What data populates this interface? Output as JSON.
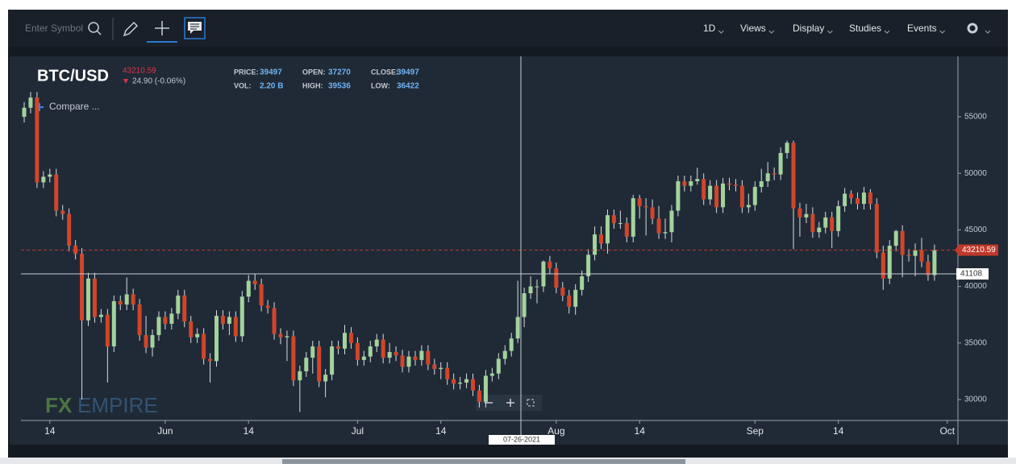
{
  "toolbar": {
    "search_placeholder": "Enter Symbol",
    "menus": [
      "1D",
      "Views",
      "Display",
      "Studies",
      "Events"
    ]
  },
  "chart_data": {
    "type": "candlestick",
    "title": "BTC/USD",
    "last_price": 43210.59,
    "change": "24.90 (-0.06%)",
    "compare": "Compare ...",
    "info": [
      {
        "label": "PRICE:",
        "value": 39497
      },
      {
        "label": "VOL:",
        "value": "2.20 B"
      },
      {
        "label": "OPEN:",
        "value": 37270
      },
      {
        "label": "HIGH:",
        "value": 39536
      },
      {
        "label": "CLOSE:",
        "value": 39497
      },
      {
        "label": "LOW:",
        "value": 36422
      }
    ],
    "crosshair": {
      "value": 41108,
      "date": "07-26-2021"
    },
    "up_color": "#a3d39c",
    "down_color": "#d2452b",
    "ylim": [
      28150,
      60340
    ],
    "yticks": [
      30000,
      35000,
      40000,
      45000,
      50000,
      55000
    ],
    "xticks": [
      {
        "value": "2021-05-14",
        "label": "14"
      },
      {
        "value": "2021-06-01",
        "label": "Jun"
      },
      {
        "value": "2021-06-14",
        "label": "14"
      },
      {
        "value": "2021-07-01",
        "label": "Jul"
      },
      {
        "value": "2021-07-14",
        "label": "14"
      },
      {
        "value": "2021-08-01",
        "label": "Aug"
      },
      {
        "value": "2021-08-14",
        "label": "14"
      },
      {
        "value": "2021-09-01",
        "label": "Sep"
      },
      {
        "value": "2021-09-14",
        "label": "14"
      },
      {
        "value": "2021-10-01",
        "label": "Oct"
      }
    ],
    "x": [
      "2021-05-10",
      "2021-05-11",
      "2021-05-12",
      "2021-05-13",
      "2021-05-14",
      "2021-05-15",
      "2021-05-16",
      "2021-05-17",
      "2021-05-18",
      "2021-05-19",
      "2021-05-20",
      "2021-05-21",
      "2021-05-22",
      "2021-05-23",
      "2021-05-24",
      "2021-05-25",
      "2021-05-26",
      "2021-05-27",
      "2021-05-28",
      "2021-05-29",
      "2021-05-30",
      "2021-05-31",
      "2021-06-01",
      "2021-06-02",
      "2021-06-03",
      "2021-06-04",
      "2021-06-05",
      "2021-06-06",
      "2021-06-07",
      "2021-06-08",
      "2021-06-09",
      "2021-06-10",
      "2021-06-11",
      "2021-06-12",
      "2021-06-13",
      "2021-06-14",
      "2021-06-15",
      "2021-06-16",
      "2021-06-17",
      "2021-06-18",
      "2021-06-19",
      "2021-06-20",
      "2021-06-21",
      "2021-06-22",
      "2021-06-23",
      "2021-06-24",
      "2021-06-25",
      "2021-06-26",
      "2021-06-27",
      "2021-06-28",
      "2021-06-29",
      "2021-06-30",
      "2021-07-01",
      "2021-07-02",
      "2021-07-03",
      "2021-07-04",
      "2021-07-05",
      "2021-07-06",
      "2021-07-07",
      "2021-07-08",
      "2021-07-09",
      "2021-07-10",
      "2021-07-11",
      "2021-07-12",
      "2021-07-13",
      "2021-07-14",
      "2021-07-15",
      "2021-07-16",
      "2021-07-17",
      "2021-07-18",
      "2021-07-19",
      "2021-07-20",
      "2021-07-21",
      "2021-07-22",
      "2021-07-23",
      "2021-07-24",
      "2021-07-25",
      "2021-07-26",
      "2021-07-27",
      "2021-07-28",
      "2021-07-29",
      "2021-07-30",
      "2021-07-31",
      "2021-08-01",
      "2021-08-02",
      "2021-08-03",
      "2021-08-04",
      "2021-08-05",
      "2021-08-06",
      "2021-08-07",
      "2021-08-08",
      "2021-08-09",
      "2021-08-10",
      "2021-08-11",
      "2021-08-12",
      "2021-08-13",
      "2021-08-14",
      "2021-08-15",
      "2021-08-16",
      "2021-08-17",
      "2021-08-18",
      "2021-08-19",
      "2021-08-20",
      "2021-08-21",
      "2021-08-22",
      "2021-08-23",
      "2021-08-24",
      "2021-08-25",
      "2021-08-26",
      "2021-08-27",
      "2021-08-28",
      "2021-08-29",
      "2021-08-30",
      "2021-08-31",
      "2021-09-01",
      "2021-09-02",
      "2021-09-03",
      "2021-09-04",
      "2021-09-05",
      "2021-09-06",
      "2021-09-07",
      "2021-09-08",
      "2021-09-09",
      "2021-09-10",
      "2021-09-11",
      "2021-09-12",
      "2021-09-13",
      "2021-09-14",
      "2021-09-15",
      "2021-09-16",
      "2021-09-17",
      "2021-09-18",
      "2021-09-19",
      "2021-09-20",
      "2021-09-21",
      "2021-09-22",
      "2021-09-23",
      "2021-09-24",
      "2021-09-25",
      "2021-09-26",
      "2021-09-27",
      "2021-09-28",
      "2021-09-29"
    ],
    "open": [
      55000,
      55800,
      56700,
      49200,
      49700,
      49900,
      46700,
      46400,
      43600,
      42900,
      37000,
      40700,
      37300,
      37500,
      34700,
      38700,
      38400,
      39300,
      38400,
      35700,
      34600,
      35700,
      37300,
      36700,
      37600,
      39200,
      36900,
      35500,
      35800,
      33600,
      33400,
      37400,
      36700,
      37300,
      35600,
      39100,
      40500,
      40200,
      38300,
      38100,
      35800,
      35500,
      35600,
      31700,
      32500,
      33700,
      34700,
      31600,
      32200,
      34700,
      34500,
      35900,
      35000,
      33500,
      33800,
      34700,
      35300,
      33700,
      34200,
      33900,
      32900,
      33800,
      33500,
      34300,
      33100,
      32700,
      32800,
      31800,
      31400,
      31500,
      31800,
      30800,
      29800,
      32100,
      32300,
      33600,
      34300,
      35400,
      37300,
      39400,
      40000,
      40000,
      42200,
      41600,
      39900,
      39200,
      38200,
      39700,
      40900,
      42800,
      44600,
      43800,
      46300,
      45600,
      45600,
      44400,
      47800,
      47100,
      47000,
      46000,
      44700,
      44800,
      46700,
      49300,
      48900,
      49300,
      49500,
      47700,
      48900,
      47000,
      49100,
      49000,
      48900,
      47000,
      47200,
      48800,
      49300,
      50000,
      49900,
      51800,
      52700,
      46900,
      46100,
      46400,
      44800,
      45200,
      46100,
      44900,
      47100,
      48200,
      47800,
      47300,
      48300,
      47300,
      43000,
      40700,
      43600,
      44900,
      42800,
      42700,
      43200,
      42200,
      41000
    ],
    "high": [
      56300,
      57200,
      57200,
      50200,
      50400,
      50400,
      47200,
      46900,
      44100,
      43400,
      41200,
      41200,
      38000,
      38000,
      39200,
      39200,
      40800,
      39800,
      38900,
      37400,
      36200,
      37800,
      37800,
      38100,
      39700,
      39700,
      37400,
      36300,
      36300,
      34100,
      37900,
      37900,
      37800,
      37800,
      39600,
      41000,
      41100,
      40700,
      38800,
      38600,
      36300,
      36100,
      36100,
      33000,
      34200,
      35200,
      35200,
      32700,
      35200,
      35200,
      36600,
      36400,
      35500,
      34300,
      35200,
      35800,
      35800,
      35000,
      34700,
      34400,
      34300,
      34300,
      34800,
      34800,
      33600,
      33300,
      33300,
      32300,
      32000,
      32300,
      32300,
      31300,
      32600,
      32800,
      34100,
      34800,
      35900,
      40500,
      39900,
      40900,
      40600,
      42300,
      42700,
      42100,
      40400,
      39700,
      40200,
      41400,
      43300,
      45300,
      45300,
      46800,
      46800,
      46700,
      46100,
      48100,
      48100,
      47800,
      47700,
      47100,
      46000,
      47200,
      49800,
      49800,
      49800,
      50500,
      50000,
      49400,
      49400,
      49600,
      49600,
      49500,
      49400,
      48200,
      49300,
      50400,
      51000,
      50500,
      52300,
      52900,
      52900,
      47400,
      47300,
      47000,
      45700,
      46600,
      46600,
      47600,
      48700,
      48500,
      48300,
      48800,
      48600,
      47800,
      43600,
      44100,
      45000,
      45400,
      43300,
      43800,
      44300,
      42800,
      43700
    ],
    "low": [
      54500,
      55300,
      48700,
      48700,
      49200,
      46200,
      45900,
      43100,
      42400,
      30000,
      36500,
      36800,
      36800,
      31500,
      34200,
      37900,
      37900,
      37900,
      35200,
      34100,
      33800,
      35200,
      36200,
      36200,
      37100,
      36400,
      35000,
      35000,
      33100,
      31500,
      32900,
      36200,
      35700,
      35100,
      35100,
      38600,
      39700,
      37800,
      37600,
      35300,
      34900,
      33400,
      31200,
      28900,
      32000,
      32300,
      31100,
      30200,
      31700,
      34000,
      34000,
      34500,
      33000,
      33000,
      33300,
      34200,
      33200,
      33200,
      33400,
      32400,
      32400,
      33000,
      33000,
      32600,
      32200,
      31800,
      31300,
      30900,
      30900,
      31000,
      30300,
      29300,
      29300,
      31600,
      31800,
      33100,
      33800,
      35000,
      36400,
      38900,
      38500,
      39500,
      41100,
      39400,
      38700,
      37600,
      37500,
      39200,
      40400,
      42300,
      43300,
      42900,
      45100,
      45100,
      43900,
      43900,
      46000,
      44500,
      45500,
      44200,
      44200,
      43900,
      46200,
      48400,
      48400,
      49000,
      47200,
      47200,
      46500,
      46500,
      48500,
      48400,
      46500,
      46500,
      46700,
      48300,
      48800,
      49400,
      49400,
      51300,
      43300,
      44400,
      45600,
      44300,
      44300,
      44700,
      43400,
      44400,
      46600,
      47300,
      46800,
      46800,
      46800,
      42500,
      39700,
      40200,
      43100,
      40800,
      42200,
      40900,
      41700,
      40500,
      40500
    ],
    "close": [
      55800,
      56700,
      49200,
      49700,
      49900,
      46700,
      46400,
      43600,
      42900,
      37000,
      40700,
      37300,
      37500,
      34700,
      38700,
      38400,
      39300,
      38400,
      35700,
      34600,
      35700,
      37300,
      36700,
      37600,
      39200,
      36900,
      35500,
      35800,
      33600,
      33400,
      37400,
      36700,
      37300,
      35600,
      39100,
      40500,
      40200,
      38300,
      38100,
      35800,
      35500,
      35600,
      31700,
      32500,
      33700,
      34700,
      31600,
      32200,
      34700,
      34500,
      35900,
      35000,
      33500,
      33800,
      34700,
      35300,
      33700,
      34200,
      33900,
      32900,
      33800,
      33500,
      34300,
      33100,
      32700,
      32800,
      31800,
      31400,
      31500,
      31800,
      30800,
      29800,
      32100,
      32300,
      33600,
      34300,
      35400,
      37300,
      39400,
      40000,
      40000,
      42200,
      41600,
      39900,
      39200,
      38200,
      39700,
      40900,
      42800,
      44600,
      43800,
      46300,
      45600,
      45600,
      44400,
      47800,
      47100,
      47000,
      46000,
      44700,
      44800,
      46700,
      49300,
      48900,
      49300,
      49500,
      47700,
      48900,
      47000,
      49100,
      49000,
      48900,
      47000,
      47200,
      48800,
      49300,
      50000,
      49900,
      51800,
      52700,
      46900,
      46100,
      46400,
      44800,
      45200,
      46100,
      44900,
      47100,
      48200,
      47800,
      47300,
      48300,
      47300,
      43000,
      40700,
      43600,
      44900,
      42800,
      42700,
      43200,
      42200,
      41000,
      43200
    ]
  }
}
